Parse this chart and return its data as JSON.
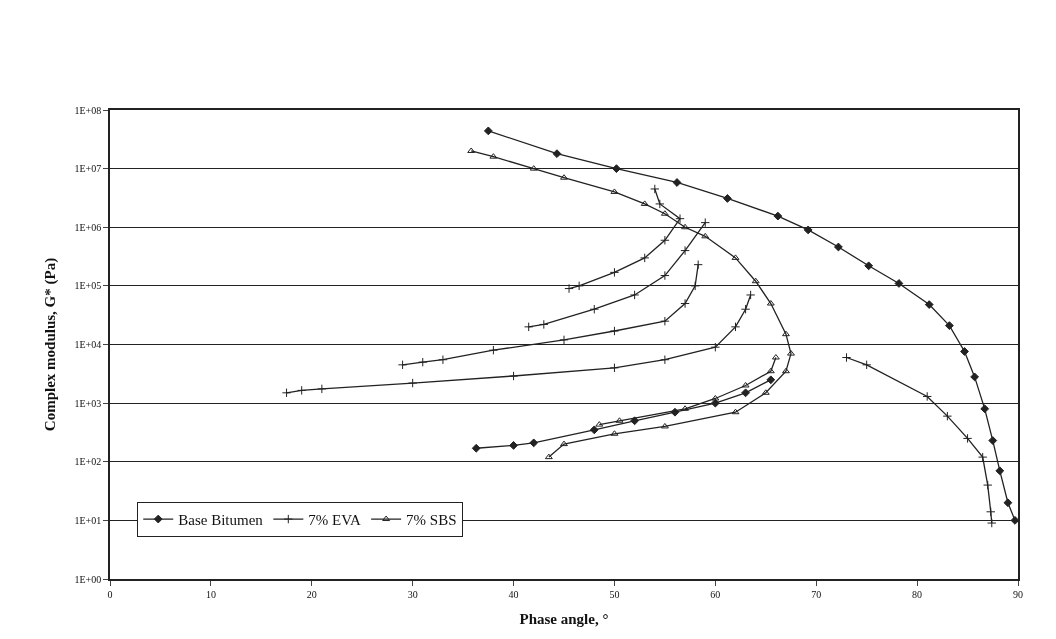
{
  "chart_data": {
    "type": "line",
    "xlabel": "Phase angle, °",
    "ylabel": "Complex modulus, G* (Pa)",
    "xlim": [
      0,
      90
    ],
    "xticks": [
      0,
      10,
      20,
      30,
      40,
      50,
      60,
      70,
      80,
      90
    ],
    "ylim": [
      1,
      100000000
    ],
    "log": "y",
    "grid": "y",
    "legend": "bottom left",
    "yticks": [
      {
        "value": 1,
        "label": "1E+00"
      },
      {
        "value": 10,
        "label": "1E+01"
      },
      {
        "value": 100,
        "label": "1E+02"
      },
      {
        "value": 1000,
        "label": "1E+03"
      },
      {
        "value": 10000,
        "label": "1E+04"
      },
      {
        "value": 100000,
        "label": "1E+05"
      },
      {
        "value": 1000000,
        "label": "1E+06"
      },
      {
        "value": 10000000,
        "label": "1E+07"
      },
      {
        "value": 100000000,
        "label": "1E+08"
      }
    ],
    "series": [
      {
        "name": "Base Bitumen",
        "color": "#222222",
        "marker": "diamond",
        "x": [
          37.5,
          44.3,
          50.2,
          56.2,
          61.2,
          66.2,
          69.2,
          72.2,
          75.2,
          78.2,
          81.2,
          83.2,
          84.7,
          85.7,
          86.7,
          87.5,
          88.2,
          89.0,
          89.7,
          null,
          36.3,
          40,
          42,
          48,
          52,
          56,
          60,
          63,
          65.5
        ],
        "values": [
          44000000,
          18000000,
          10000000,
          5800000,
          3100000,
          1550000,
          900000,
          460000,
          220000,
          110000,
          48000,
          21000,
          7600,
          2800,
          800,
          230,
          70,
          20,
          10,
          null,
          170,
          190,
          210,
          350,
          500,
          700,
          1000,
          1500,
          2500
        ]
      },
      {
        "name": "7% EVA",
        "color": "#222222",
        "marker": "cross",
        "x": [
          17.5,
          19,
          21,
          30,
          40,
          50,
          55,
          60,
          62,
          63,
          63.5,
          null,
          29,
          31,
          33,
          38,
          45,
          50,
          55,
          57,
          58,
          58.3,
          null,
          41.5,
          43,
          48,
          52,
          55,
          57,
          59,
          null,
          45.5,
          46.5,
          50,
          53,
          55,
          56.5,
          54.5,
          54,
          null,
          73,
          75,
          81,
          83,
          85,
          86.5,
          87,
          87.3,
          87.4
        ],
        "values": [
          1500,
          1650,
          1750,
          2200,
          2900,
          4000,
          5500,
          9000,
          20000,
          40000,
          70000,
          null,
          4500,
          5000,
          5500,
          8000,
          12000,
          17000,
          25000,
          50000,
          100000,
          230000,
          null,
          20000,
          22000,
          40000,
          70000,
          150000,
          400000,
          1200000,
          null,
          90000,
          100000,
          170000,
          300000,
          600000,
          1400000,
          2500000,
          4500000,
          null,
          6000,
          4500,
          1300,
          600,
          250,
          120,
          40,
          14,
          9
        ]
      },
      {
        "name": "7% SBS",
        "color": "#222222",
        "marker": "triangle",
        "x": [
          35.8,
          38,
          42,
          45,
          50,
          53,
          55,
          57,
          59,
          62,
          64,
          65.5,
          67,
          67.5,
          67,
          65,
          62,
          55,
          50,
          45,
          43.5,
          null,
          48.5,
          50.5,
          57,
          60,
          63,
          65.5,
          66
        ],
        "values": [
          20000000,
          16000000,
          10000000,
          7000000,
          4000000,
          2500000,
          1700000,
          1000000,
          700000,
          300000,
          120000,
          50000,
          15000,
          7000,
          3500,
          1500,
          700,
          400,
          300,
          200,
          120,
          null,
          430,
          500,
          800,
          1200,
          2000,
          3500,
          6000
        ]
      }
    ]
  }
}
